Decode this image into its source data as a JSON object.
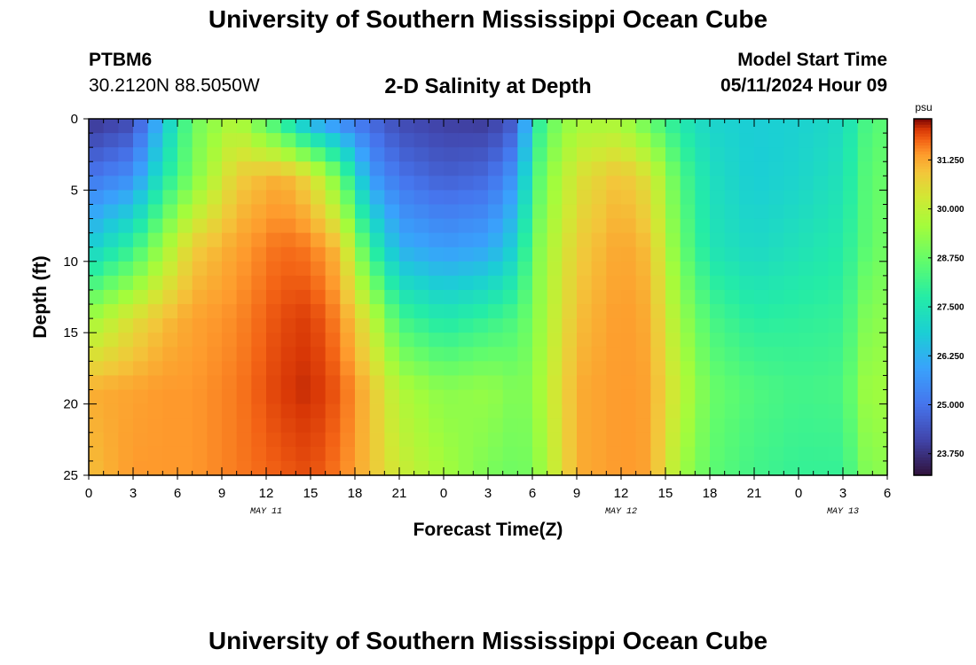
{
  "header": {
    "title": "University of Southern Mississippi Ocean Cube",
    "station_id": "PTBM6",
    "coordinates": "30.2120N  88.5050W",
    "subtitle": "2-D Salinity at Depth",
    "model_start_label": "Model Start Time",
    "model_start_value": "05/11/2024 Hour 09"
  },
  "footer": {
    "title": "University of Southern Mississippi Ocean Cube"
  },
  "chart_data": {
    "type": "heatmap",
    "title": "2-D Salinity at Depth",
    "xlabel": "Forecast Time(Z)",
    "ylabel": "Depth (ft)",
    "x_range_hours": [
      0,
      54
    ],
    "x_tick_labels": [
      "0",
      "3",
      "6",
      "9",
      "12",
      "15",
      "18",
      "21",
      "0",
      "3",
      "6",
      "9",
      "12",
      "15",
      "18",
      "21",
      "0",
      "3",
      "6"
    ],
    "date_labels": [
      {
        "hour": 12,
        "label": "MAY 11"
      },
      {
        "hour": 36,
        "label": "MAY 12"
      },
      {
        "hour": 51,
        "label": "MAY 13"
      }
    ],
    "y_range_ft": [
      0,
      25
    ],
    "y_ticks": [
      0,
      5,
      10,
      15,
      20,
      25
    ],
    "colorbar": {
      "unit": "psu",
      "min": 23.2,
      "max": 32.3,
      "tick_values": [
        31.25,
        30.0,
        28.75,
        27.5,
        26.25,
        25.0,
        23.75
      ],
      "tick_labels": [
        "31.250",
        "30.000",
        "28.750",
        "27.500",
        "26.250",
        "25.000",
        "23.750"
      ]
    },
    "columns": 54,
    "rows": 25,
    "depth_profile_ft": [
      0,
      4,
      9,
      14,
      19,
      25
    ],
    "profiles_by_hour": [
      {
        "hour": 0,
        "values": [
          23.8,
          25.0,
          26.8,
          29.5,
          31.2,
          31.0
        ]
      },
      {
        "hour": 3,
        "values": [
          24.2,
          25.5,
          28.0,
          30.5,
          31.3,
          31.4
        ]
      },
      {
        "hour": 5,
        "values": [
          26.5,
          27.5,
          29.5,
          31.0,
          31.4,
          31.4
        ]
      },
      {
        "hour": 7,
        "values": [
          28.8,
          29.0,
          30.8,
          31.3,
          31.4,
          31.4
        ]
      },
      {
        "hour": 10,
        "values": [
          29.8,
          30.8,
          31.3,
          31.5,
          31.6,
          31.6
        ]
      },
      {
        "hour": 13,
        "values": [
          27.8,
          31.2,
          31.7,
          31.9,
          32.0,
          31.8
        ]
      },
      {
        "hour": 15,
        "values": [
          26.0,
          30.6,
          31.6,
          32.0,
          32.1,
          31.9
        ]
      },
      {
        "hour": 17,
        "values": [
          25.3,
          28.8,
          31.0,
          31.5,
          31.8,
          31.6
        ]
      },
      {
        "hour": 19,
        "values": [
          24.8,
          25.8,
          28.0,
          30.2,
          31.0,
          31.0
        ]
      },
      {
        "hour": 21,
        "values": [
          24.2,
          25.0,
          26.2,
          28.2,
          29.8,
          30.2
        ]
      },
      {
        "hour": 24,
        "values": [
          24.0,
          24.6,
          25.8,
          27.6,
          29.2,
          29.6
        ]
      },
      {
        "hour": 27,
        "values": [
          23.9,
          24.8,
          26.0,
          28.0,
          29.4,
          29.0
        ]
      },
      {
        "hour": 29,
        "values": [
          24.6,
          25.8,
          27.0,
          28.4,
          29.0,
          28.8
        ]
      },
      {
        "hour": 30,
        "values": [
          27.3,
          28.0,
          28.8,
          29.0,
          29.2,
          29.0
        ]
      },
      {
        "hour": 31,
        "values": [
          28.6,
          29.2,
          29.6,
          29.8,
          30.0,
          29.8
        ]
      },
      {
        "hour": 33,
        "values": [
          29.6,
          30.4,
          30.8,
          31.0,
          31.2,
          31.2
        ]
      },
      {
        "hour": 36,
        "values": [
          29.6,
          31.0,
          31.3,
          31.4,
          31.4,
          31.4
        ]
      },
      {
        "hour": 38,
        "values": [
          28.6,
          30.4,
          31.0,
          31.2,
          31.3,
          31.3
        ]
      },
      {
        "hour": 40,
        "values": [
          27.6,
          28.4,
          28.8,
          29.5,
          30.0,
          29.6
        ]
      },
      {
        "hour": 42,
        "values": [
          27.0,
          27.3,
          27.5,
          28.3,
          28.8,
          28.6
        ]
      },
      {
        "hour": 45,
        "values": [
          26.8,
          26.8,
          27.1,
          27.8,
          28.4,
          28.2
        ]
      },
      {
        "hour": 48,
        "values": [
          26.9,
          27.0,
          27.4,
          27.9,
          28.2,
          28.0
        ]
      },
      {
        "hour": 51,
        "values": [
          27.2,
          27.4,
          27.7,
          28.0,
          28.3,
          28.0
        ]
      },
      {
        "hour": 53,
        "values": [
          28.6,
          28.8,
          28.8,
          29.4,
          29.8,
          29.4
        ]
      },
      {
        "hour": 54,
        "values": [
          28.4,
          28.6,
          28.8,
          29.0,
          29.2,
          29.0
        ]
      }
    ]
  }
}
